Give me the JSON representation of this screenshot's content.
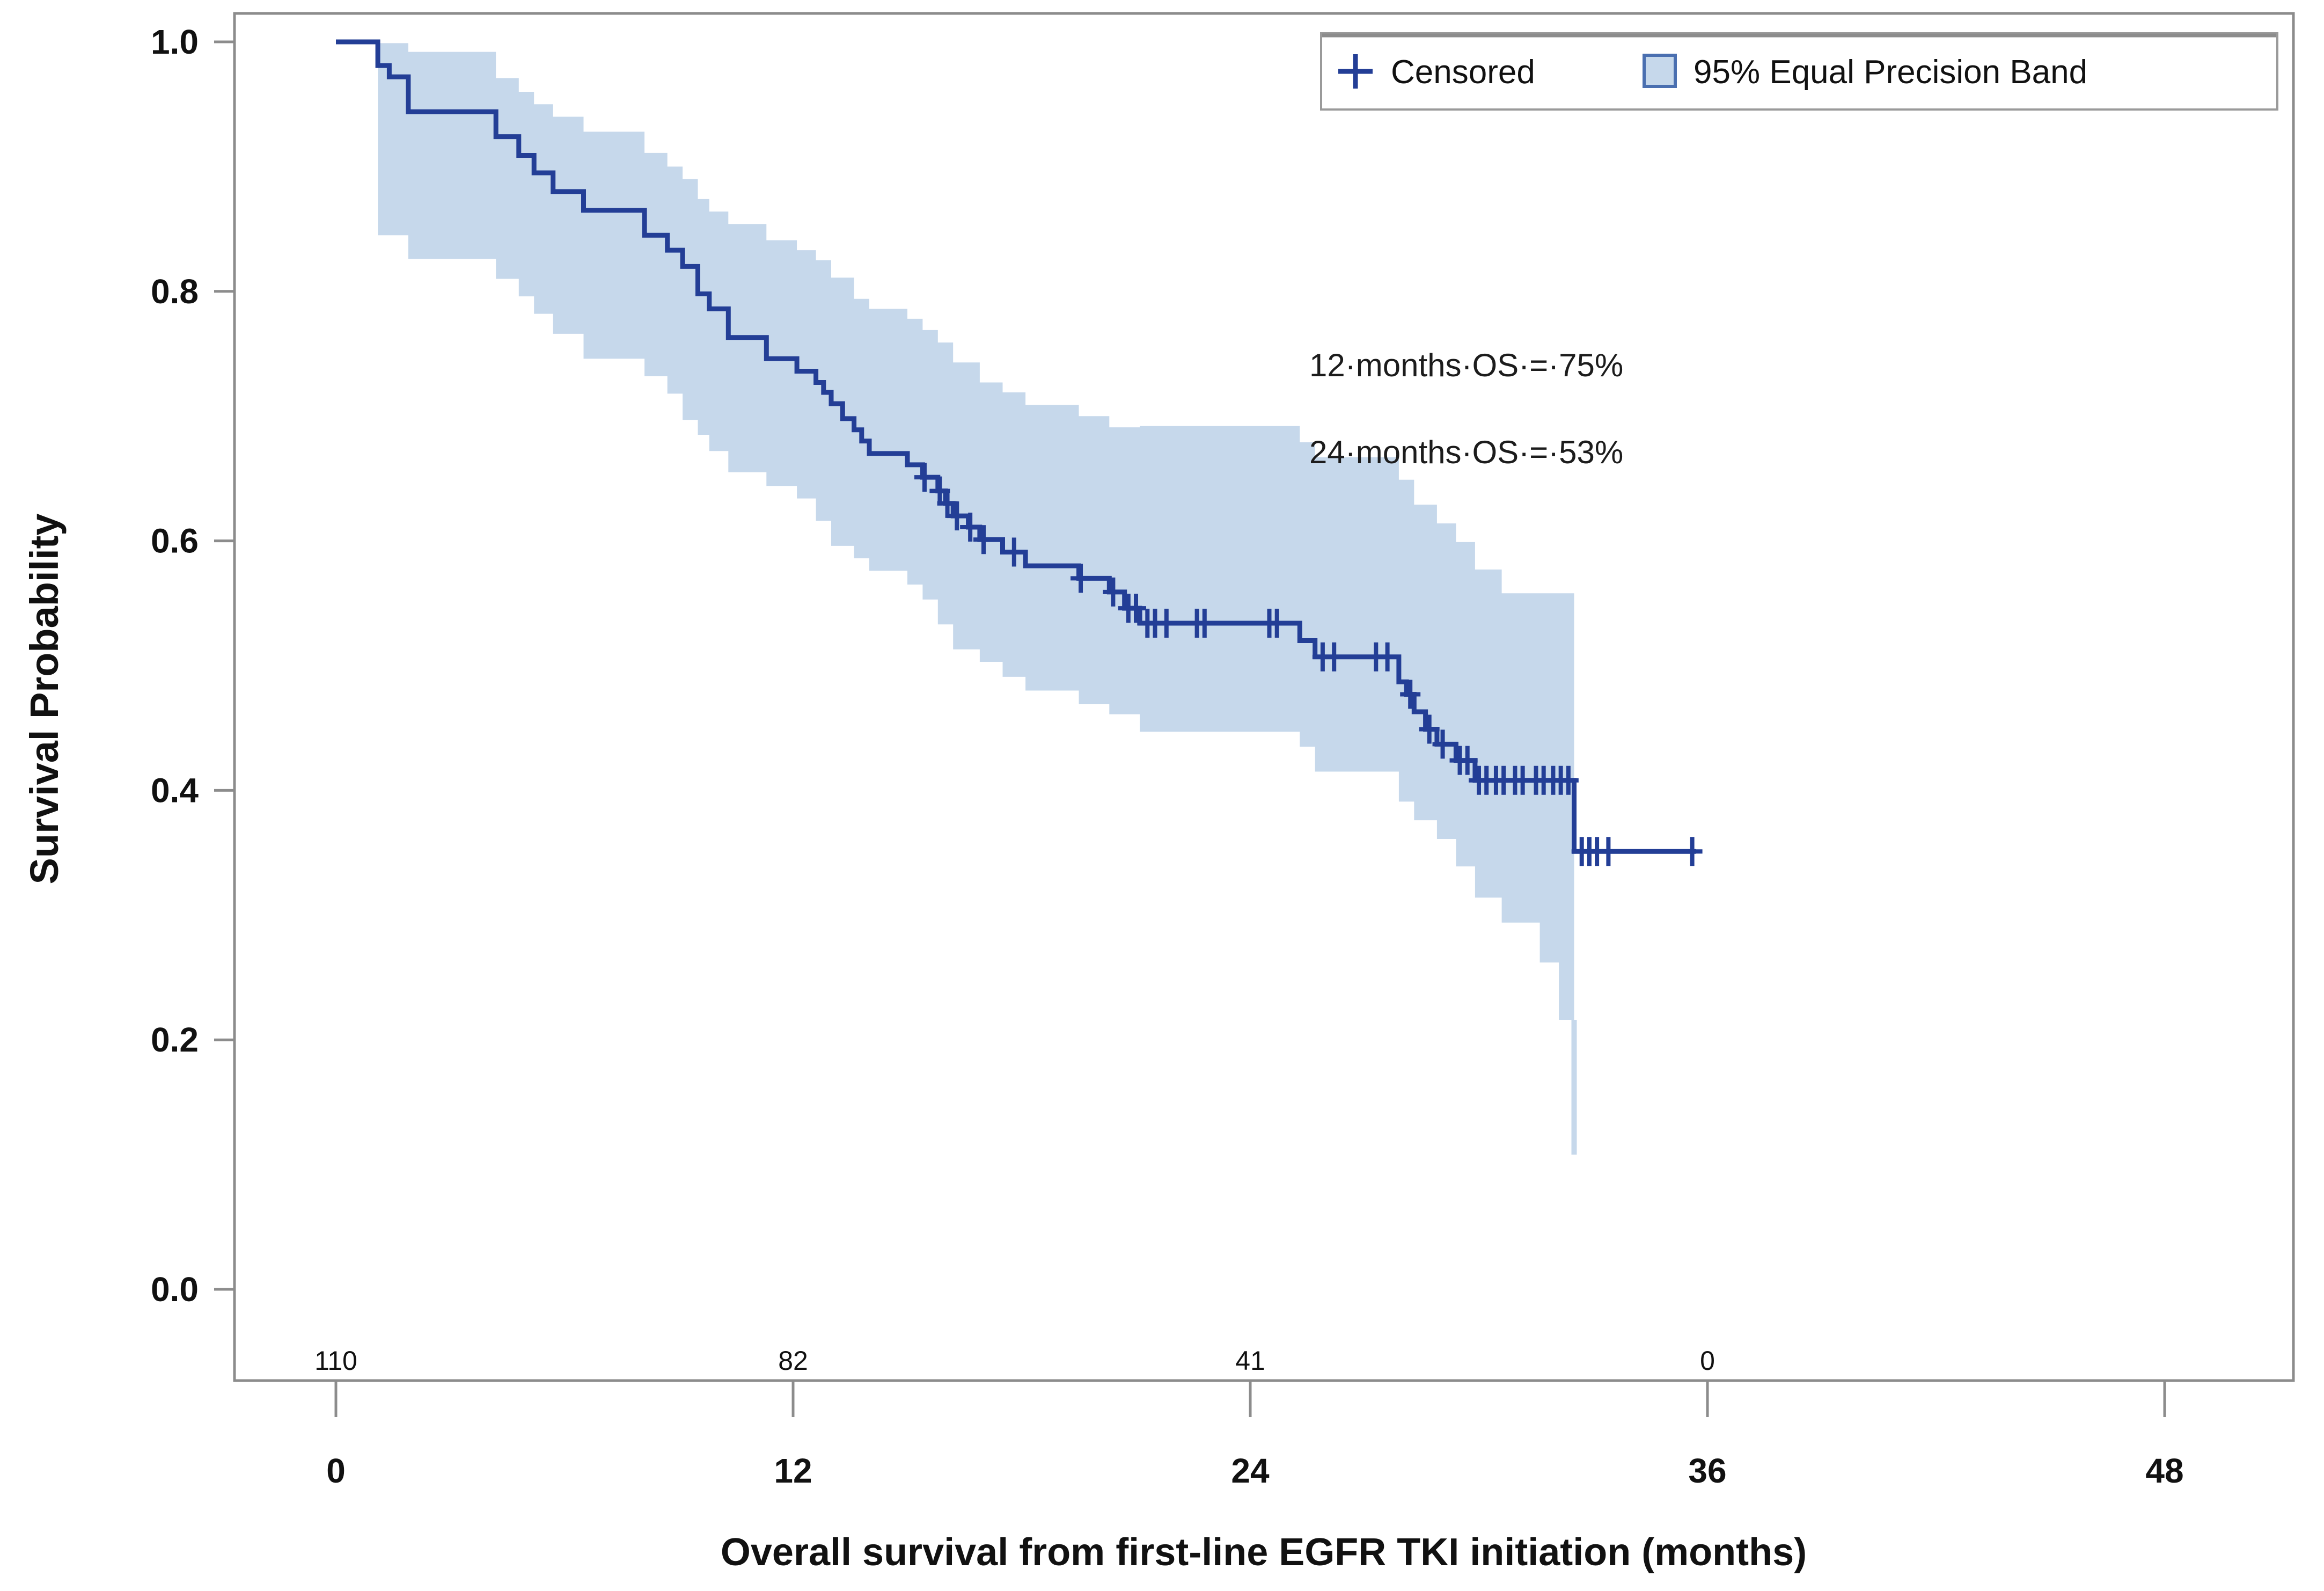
{
  "chart_data": {
    "type": "line",
    "subtype": "kaplan_meier_survival_curve",
    "title": "",
    "xlabel": "Overall survival from first-line EGFR TKI initiation (months)",
    "ylabel": "Survival Probability",
    "xlim": [
      0,
      48
    ],
    "ylim": [
      0.0,
      1.0
    ],
    "grid": false,
    "x_tick_values": [
      0,
      12,
      24,
      36,
      48
    ],
    "x_tick_labels": [
      "0",
      "12",
      "24",
      "36",
      "48"
    ],
    "y_tick_values": [
      1.0,
      0.8,
      0.6,
      0.4,
      0.2,
      0.0
    ],
    "y_tick_labels": [
      "1.0",
      "0.8",
      "0.6",
      "0.4",
      "0.2",
      "0.0"
    ],
    "legend": {
      "position": "top-right",
      "censored_label": "Censored",
      "band_label": "95% Equal Precision Band"
    },
    "annotations": [
      {
        "text": "12·months·OS·=·75%"
      },
      {
        "text": "24·months·OS·=·53%"
      }
    ],
    "landmark_estimates": [
      {
        "time_months": 12,
        "os_percent": 75
      },
      {
        "time_months": 24,
        "os_percent": 53
      }
    ],
    "number_at_risk": {
      "times": [
        0,
        12,
        24,
        36
      ],
      "counts": [
        "110",
        "82",
        "41",
        "0"
      ]
    },
    "survival_curve": {
      "name": "Overall survival",
      "end_time_months": 35.7,
      "steps": [
        [
          0,
          1.0
        ],
        [
          1.1,
          0.981
        ],
        [
          1.4,
          0.972
        ],
        [
          1.9,
          0.944
        ],
        [
          4.2,
          0.924
        ],
        [
          4.8,
          0.909
        ],
        [
          5.2,
          0.895
        ],
        [
          5.7,
          0.88
        ],
        [
          6.5,
          0.865
        ],
        [
          8.1,
          0.845
        ],
        [
          8.7,
          0.833
        ],
        [
          9.1,
          0.82
        ],
        [
          9.5,
          0.798
        ],
        [
          9.8,
          0.786
        ],
        [
          10.3,
          0.763
        ],
        [
          11.3,
          0.746
        ],
        [
          12.1,
          0.736
        ],
        [
          12.6,
          0.727
        ],
        [
          12.8,
          0.719
        ],
        [
          13.0,
          0.71
        ],
        [
          13.3,
          0.698
        ],
        [
          13.6,
          0.689
        ],
        [
          13.8,
          0.68
        ],
        [
          14.0,
          0.67
        ],
        [
          15.0,
          0.661
        ],
        [
          15.4,
          0.651
        ],
        [
          15.8,
          0.64
        ],
        [
          16.0,
          0.63
        ],
        [
          16.2,
          0.62
        ],
        [
          16.6,
          0.611
        ],
        [
          16.9,
          0.601
        ],
        [
          17.5,
          0.591
        ],
        [
          18.1,
          0.58
        ],
        [
          19.5,
          0.57
        ],
        [
          20.3,
          0.559
        ],
        [
          20.7,
          0.546
        ],
        [
          21.1,
          0.534
        ],
        [
          25.3,
          0.52
        ],
        [
          25.7,
          0.507
        ],
        [
          27.9,
          0.487
        ],
        [
          28.1,
          0.477
        ],
        [
          28.3,
          0.463
        ],
        [
          28.6,
          0.449
        ],
        [
          28.9,
          0.437
        ],
        [
          29.4,
          0.424
        ],
        [
          29.9,
          0.408
        ],
        [
          32.5,
          0.351
        ]
      ]
    },
    "censored_marks": [
      [
        15.45,
        0.651
      ],
      [
        15.85,
        0.64
      ],
      [
        16.05,
        0.63
      ],
      [
        16.3,
        0.62
      ],
      [
        16.65,
        0.611
      ],
      [
        17.0,
        0.601
      ],
      [
        17.8,
        0.591
      ],
      [
        19.55,
        0.57
      ],
      [
        20.4,
        0.559
      ],
      [
        20.8,
        0.546
      ],
      [
        21.0,
        0.546
      ],
      [
        21.3,
        0.534
      ],
      [
        21.5,
        0.534
      ],
      [
        21.8,
        0.534
      ],
      [
        22.6,
        0.534
      ],
      [
        22.8,
        0.534
      ],
      [
        24.5,
        0.534
      ],
      [
        24.7,
        0.534
      ],
      [
        25.9,
        0.507
      ],
      [
        26.2,
        0.507
      ],
      [
        27.3,
        0.507
      ],
      [
        27.6,
        0.507
      ],
      [
        28.2,
        0.477
      ],
      [
        28.7,
        0.449
      ],
      [
        29.05,
        0.437
      ],
      [
        29.5,
        0.424
      ],
      [
        29.7,
        0.424
      ],
      [
        30.0,
        0.408
      ],
      [
        30.2,
        0.408
      ],
      [
        30.45,
        0.408
      ],
      [
        30.65,
        0.408
      ],
      [
        30.95,
        0.408
      ],
      [
        31.15,
        0.408
      ],
      [
        31.5,
        0.408
      ],
      [
        31.7,
        0.408
      ],
      [
        31.95,
        0.408
      ],
      [
        32.15,
        0.408
      ],
      [
        32.35,
        0.408
      ],
      [
        32.7,
        0.351
      ],
      [
        32.9,
        0.351
      ],
      [
        33.1,
        0.351
      ],
      [
        33.4,
        0.351
      ],
      [
        35.6,
        0.351
      ]
    ],
    "confidence_band": {
      "name": "95% Equal Precision Band",
      "points": [
        [
          1.1,
          0.862,
          0.999
        ],
        [
          1.9,
          0.845,
          0.992
        ],
        [
          4.2,
          0.826,
          0.971
        ],
        [
          4.8,
          0.81,
          0.96
        ],
        [
          5.2,
          0.796,
          0.95
        ],
        [
          5.7,
          0.782,
          0.94
        ],
        [
          6.5,
          0.766,
          0.928
        ],
        [
          8.1,
          0.746,
          0.911
        ],
        [
          8.7,
          0.732,
          0.9
        ],
        [
          9.1,
          0.718,
          0.89
        ],
        [
          9.5,
          0.697,
          0.874
        ],
        [
          9.8,
          0.685,
          0.864
        ],
        [
          10.3,
          0.672,
          0.854
        ],
        [
          11.3,
          0.655,
          0.841
        ],
        [
          12.1,
          0.644,
          0.833
        ],
        [
          12.6,
          0.634,
          0.825
        ],
        [
          13.0,
          0.616,
          0.811
        ],
        [
          13.6,
          0.596,
          0.794
        ],
        [
          14.0,
          0.586,
          0.786
        ],
        [
          15.0,
          0.576,
          0.778
        ],
        [
          15.4,
          0.565,
          0.769
        ],
        [
          15.8,
          0.553,
          0.759
        ],
        [
          16.2,
          0.533,
          0.743
        ],
        [
          16.9,
          0.513,
          0.727
        ],
        [
          17.5,
          0.503,
          0.719
        ],
        [
          18.1,
          0.491,
          0.709
        ],
        [
          19.5,
          0.48,
          0.7
        ],
        [
          20.3,
          0.469,
          0.691
        ],
        [
          21.1,
          0.461,
          0.692
        ],
        [
          25.3,
          0.447,
          0.679
        ],
        [
          25.7,
          0.435,
          0.667
        ],
        [
          27.9,
          0.415,
          0.649
        ],
        [
          28.3,
          0.391,
          0.629
        ],
        [
          28.9,
          0.376,
          0.614
        ],
        [
          29.4,
          0.361,
          0.599
        ],
        [
          29.9,
          0.339,
          0.577
        ],
        [
          30.6,
          0.314,
          0.558
        ],
        [
          31.6,
          0.294,
          0.558
        ],
        [
          32.1,
          0.262,
          0.558
        ],
        [
          32.5,
          0.216,
          0.558
        ]
      ],
      "right_edge_tail": {
        "time": 32.5,
        "from": 0.216,
        "to": 0.108
      }
    }
  },
  "colors": {
    "curve": "#233E96",
    "band": "#C6D8EB",
    "band_swatch_border": "#4A6FB0",
    "axis": "#8C8C8C",
    "legend_border": "#9A9A9A",
    "text": "#111111",
    "at_risk_text": "#222222",
    "background": "#FFFFFF"
  }
}
